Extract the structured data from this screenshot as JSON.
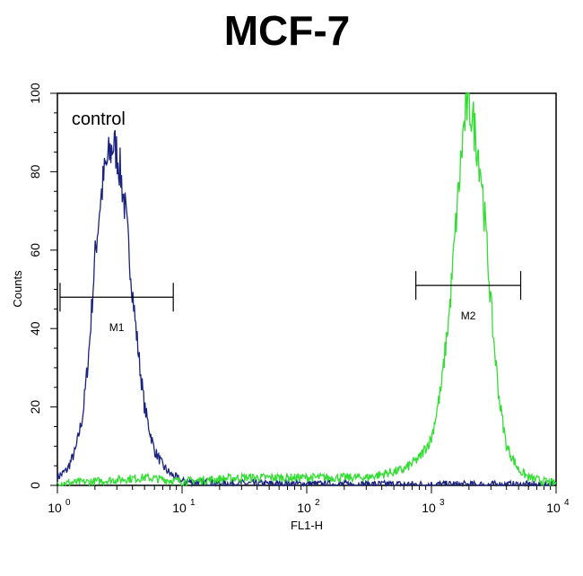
{
  "chart_data": {
    "type": "line",
    "title": "MCF-7",
    "xlabel": "FL1-H",
    "ylabel": "Counts",
    "x_scale": "log",
    "xlim": [
      1,
      10000
    ],
    "ylim": [
      0,
      100
    ],
    "x_ticks": [
      {
        "value": 1,
        "base": "10",
        "exp": "0"
      },
      {
        "value": 10,
        "base": "10",
        "exp": "1"
      },
      {
        "value": 100,
        "base": "10",
        "exp": "2"
      },
      {
        "value": 1000,
        "base": "10",
        "exp": "3"
      },
      {
        "value": 10000,
        "base": "10",
        "exp": "4"
      }
    ],
    "y_ticks": [
      0,
      20,
      40,
      60,
      80,
      100
    ],
    "grid": false,
    "annotations": [
      {
        "text": "control",
        "x": 1.3,
        "y": 92
      }
    ],
    "markers": [
      {
        "label": "M1",
        "x_start": 1.05,
        "x_end": 8.5,
        "y": 48
      },
      {
        "label": "M2",
        "x_start": 750,
        "x_end": 5200,
        "y": 51
      }
    ],
    "series": [
      {
        "color": "#1a237e",
        "x": [
          1.0,
          1.2,
          1.4,
          1.6,
          1.8,
          2.0,
          2.2,
          2.4,
          2.6,
          2.8,
          3.0,
          3.2,
          3.5,
          3.8,
          4.2,
          4.6,
          5.0,
          5.5,
          6.0,
          7.0,
          8.0,
          9.0,
          10,
          20,
          100,
          1000,
          10000
        ],
        "y": [
          2,
          4,
          9,
          18,
          35,
          58,
          72,
          80,
          84,
          87,
          85,
          80,
          70,
          58,
          42,
          30,
          20,
          14,
          9,
          5,
          3,
          2,
          1,
          0.5,
          0.3,
          0.2,
          0.1
        ]
      },
      {
        "color": "#33dd33",
        "x": [
          1.0,
          2.0,
          5.0,
          10,
          30,
          100,
          300,
          600,
          800,
          1000,
          1200,
          1400,
          1600,
          1800,
          1950,
          2100,
          2300,
          2500,
          2800,
          3100,
          3500,
          4000,
          5000,
          6000,
          8000,
          10000
        ],
        "y": [
          0.5,
          1,
          2,
          1,
          2,
          2,
          2,
          4,
          7,
          12,
          25,
          45,
          70,
          90,
          98,
          95,
          88,
          80,
          60,
          40,
          22,
          10,
          4,
          2,
          1,
          0.5
        ]
      }
    ]
  }
}
